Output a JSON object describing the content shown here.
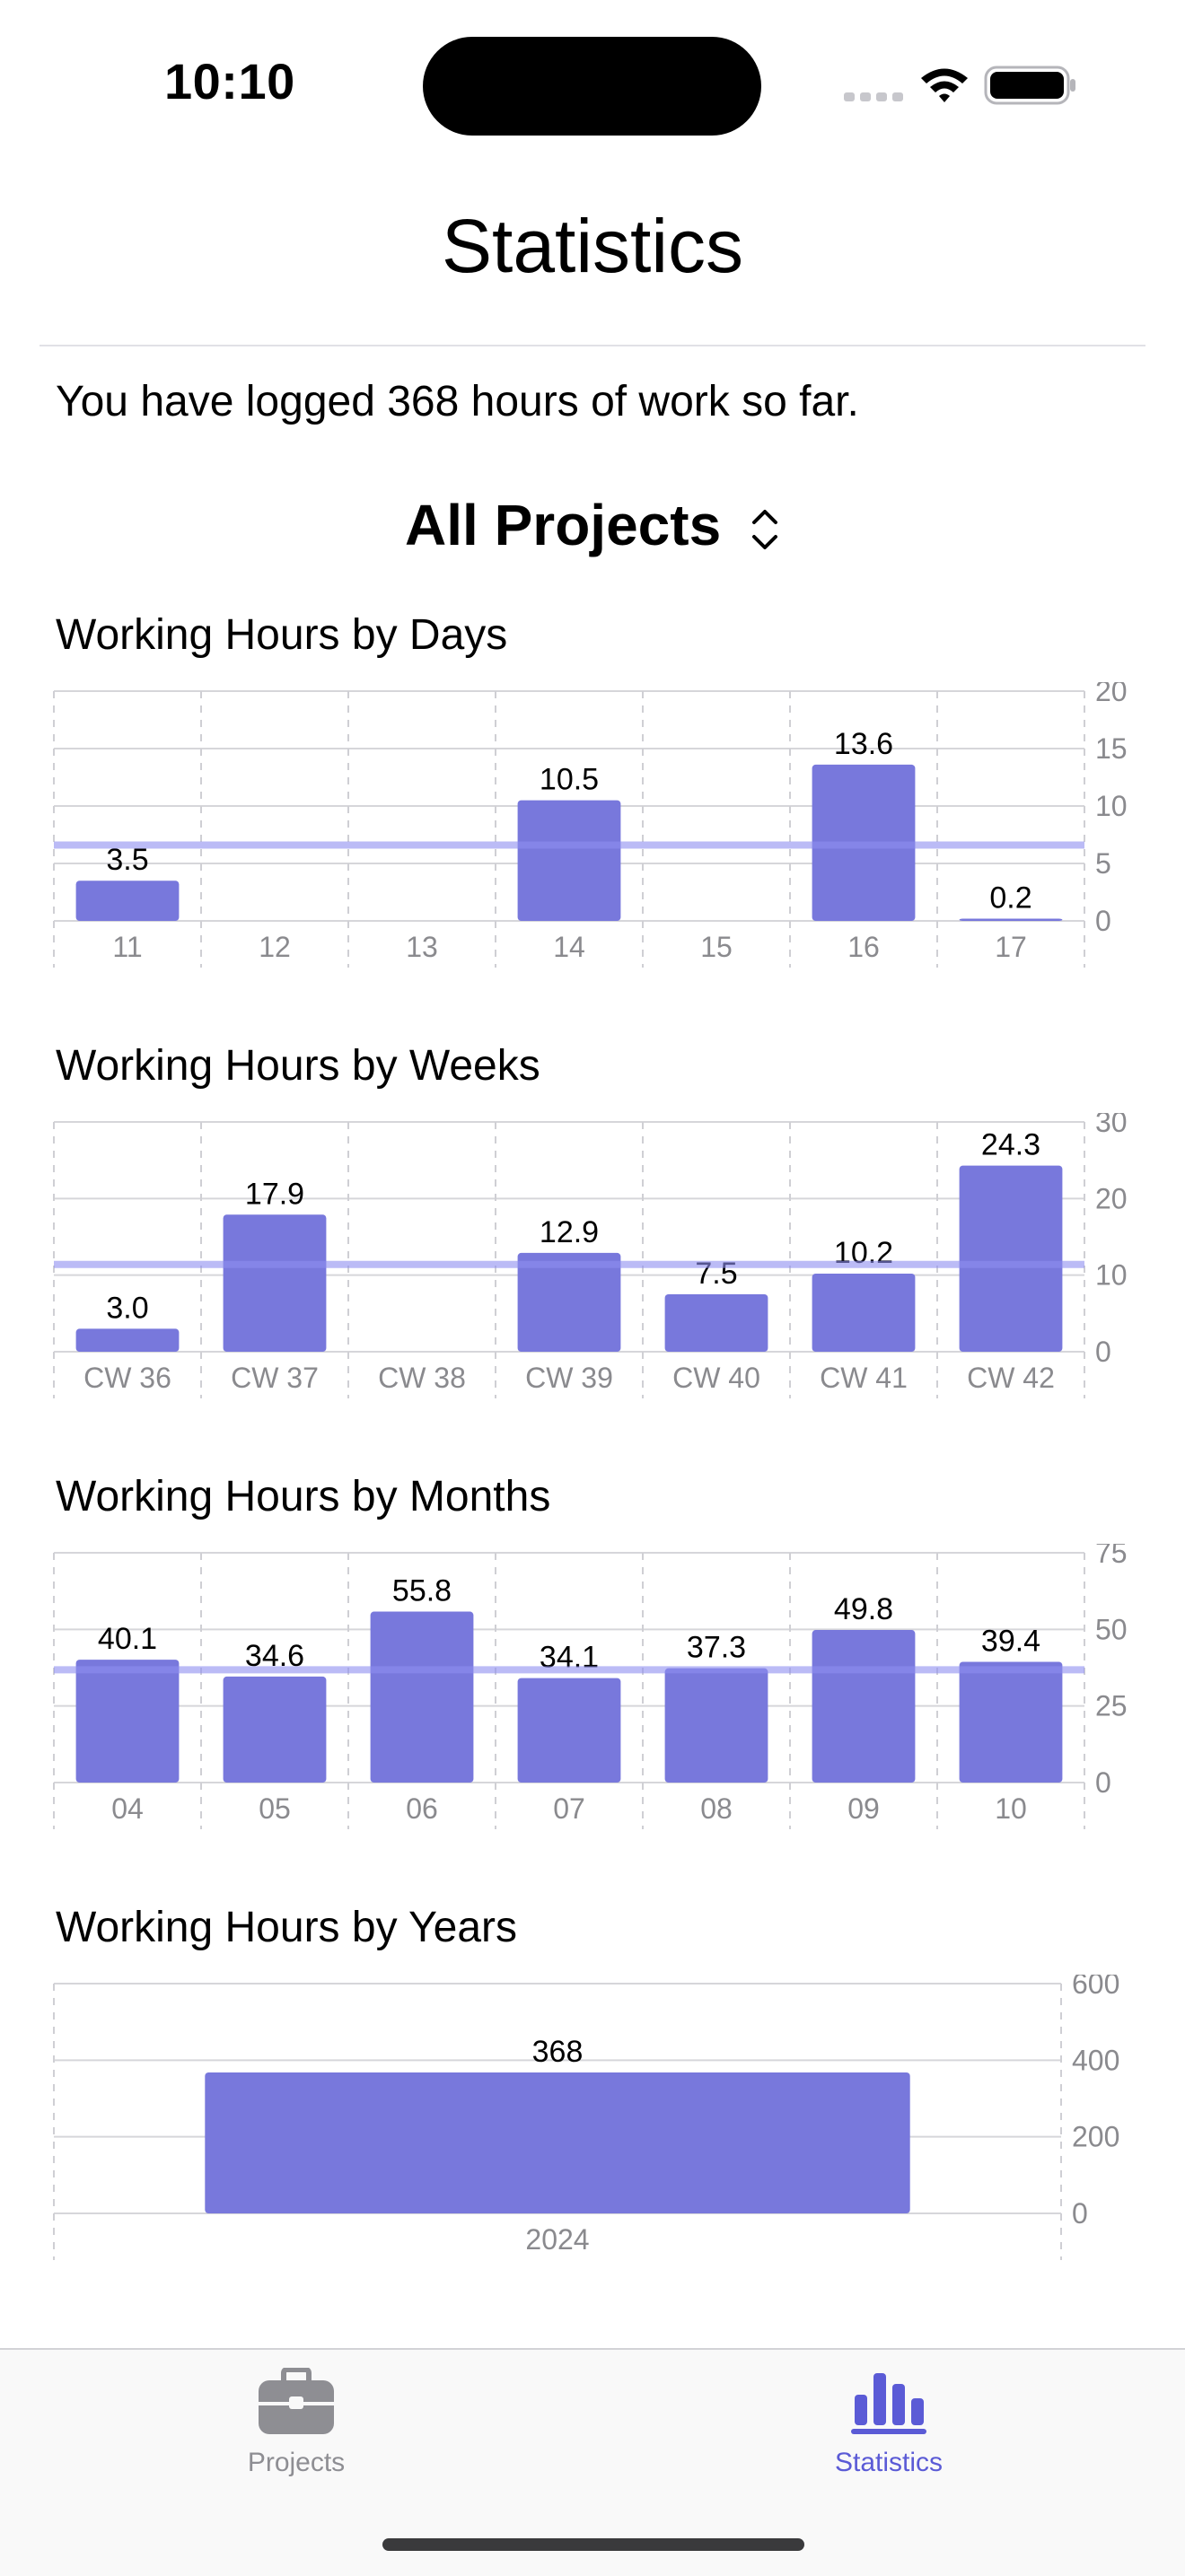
{
  "status_bar": {
    "time": "10:10"
  },
  "nav": {
    "title": "Statistics"
  },
  "summary": "You have logged 368 hours of work so far.",
  "project_picker": {
    "selected": "All Projects"
  },
  "colors": {
    "bar": "#7878dc",
    "average_line": "#8e8ef0",
    "tint": "#5b5bd6",
    "inactive": "#8e8e93"
  },
  "charts": [
    {
      "key": "days",
      "title": "Working Hours by Days",
      "chart_data": {
        "type": "bar",
        "title": "Working Hours by Days",
        "categories": [
          "11",
          "12",
          "13",
          "14",
          "15",
          "16",
          "17"
        ],
        "values": [
          3.5,
          null,
          null,
          10.5,
          null,
          13.6,
          0.2
        ],
        "value_labels": [
          "3.5",
          "",
          "",
          "10.5",
          "",
          "13.6",
          "0.2"
        ],
        "yticks": [
          0,
          5,
          10,
          15,
          20
        ],
        "ylim": [
          0,
          20
        ],
        "average": 6.6,
        "y_axis_side": "right"
      }
    },
    {
      "key": "weeks",
      "title": "Working Hours by Weeks",
      "chart_data": {
        "type": "bar",
        "title": "Working Hours by Weeks",
        "categories": [
          "CW 36",
          "CW 37",
          "CW 38",
          "CW 39",
          "CW 40",
          "CW 41",
          "CW 42"
        ],
        "values": [
          3.0,
          17.9,
          null,
          12.9,
          7.5,
          10.2,
          24.3
        ],
        "value_labels": [
          "3.0",
          "17.9",
          "",
          "12.9",
          "7.5",
          "10.2",
          "24.3"
        ],
        "yticks": [
          0,
          10,
          20,
          30
        ],
        "ylim": [
          0,
          30
        ],
        "average": 11.4,
        "y_axis_side": "right"
      }
    },
    {
      "key": "months",
      "title": "Working Hours by Months",
      "chart_data": {
        "type": "bar",
        "title": "Working Hours by Months",
        "categories": [
          "04",
          "05",
          "06",
          "07",
          "08",
          "09",
          "10"
        ],
        "values": [
          40.1,
          34.6,
          55.8,
          34.1,
          37.3,
          49.8,
          39.4
        ],
        "value_labels": [
          "40.1",
          "34.6",
          "55.8",
          "34.1",
          "37.3",
          "49.8",
          "39.4"
        ],
        "yticks": [
          0,
          25,
          50,
          75
        ],
        "ylim": [
          0,
          75
        ],
        "average": 36.8,
        "y_axis_side": "right"
      }
    },
    {
      "key": "years",
      "title": "Working Hours by Years",
      "chart_data": {
        "type": "bar",
        "title": "Working Hours by Years",
        "categories": [
          "2024"
        ],
        "values": [
          368
        ],
        "value_labels": [
          "368"
        ],
        "yticks": [
          0,
          200,
          400,
          600
        ],
        "ylim": [
          0,
          600
        ],
        "y_axis_side": "right"
      }
    }
  ],
  "tab_bar": {
    "tabs": [
      {
        "label": "Projects",
        "icon": "briefcase-icon",
        "selected": false
      },
      {
        "label": "Statistics",
        "icon": "bar-chart-icon",
        "selected": true
      }
    ]
  }
}
